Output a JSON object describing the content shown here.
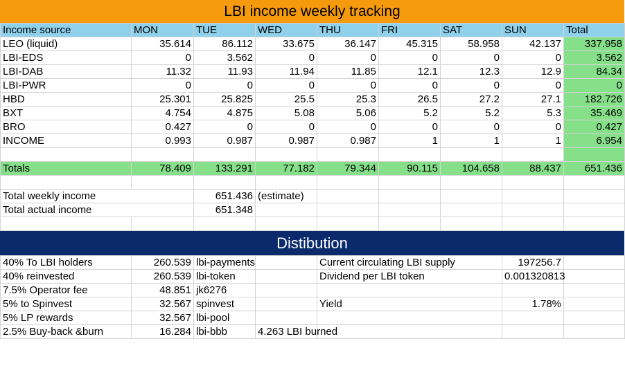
{
  "title": "LBI income weekly tracking",
  "headers": [
    "Income source",
    "MON",
    "TUE",
    "WED",
    "THU",
    "FRI",
    "SAT",
    "SUN",
    "Total"
  ],
  "rows": [
    [
      "LEO (liquid)",
      "35.614",
      "86.112",
      "33.675",
      "36.147",
      "45.315",
      "58.958",
      "42.137",
      "337.958"
    ],
    [
      "LBI-EDS",
      "0",
      "3.562",
      "0",
      "0",
      "0",
      "0",
      "0",
      "3.562"
    ],
    [
      "LBI-DAB",
      "11.32",
      "11.93",
      "11.94",
      "11.85",
      "12.1",
      "12.3",
      "12.9",
      "84.34"
    ],
    [
      "LBI-PWR",
      "0",
      "0",
      "0",
      "0",
      "0",
      "0",
      "0",
      "0"
    ],
    [
      "HBD",
      "25.301",
      "25.825",
      "25.5",
      "25.3",
      "26.5",
      "27.2",
      "27.1",
      "182.726"
    ],
    [
      "BXT",
      "4.754",
      "4.875",
      "5.08",
      "5.06",
      "5.2",
      "5.2",
      "5.3",
      "35.469"
    ],
    [
      "BRO",
      "0.427",
      "0",
      "0",
      "0",
      "0",
      "0",
      "0",
      "0.427"
    ],
    [
      "INCOME",
      "0.993",
      "0.987",
      "0.987",
      "0.987",
      "1",
      "1",
      "1",
      "6.954"
    ]
  ],
  "totals": [
    "Totals",
    "78.409",
    "133.291",
    "77.182",
    "79.344",
    "90.115",
    "104.658",
    "88.437",
    "651.436"
  ],
  "summary": {
    "weekly_label": "Total weekly income",
    "weekly_value": "651.436",
    "weekly_note": "(estimate)",
    "actual_label": "Total actual income",
    "actual_value": "651.348"
  },
  "distribution": {
    "title": "Distibution",
    "rows": [
      {
        "label": "40% To LBI holders",
        "value": "260.539",
        "account": "lbi-payments",
        "extra": "",
        "right_label": "Current circulating LBI supply",
        "right_value": "197256.7"
      },
      {
        "label": "40% reinvested",
        "value": "260.539",
        "account": "lbi-token",
        "extra": "",
        "right_label": "Dividend per LBI token",
        "right_value": "0.001320813"
      },
      {
        "label": "7.5% Operator fee",
        "value": "48.851",
        "account": "jk6276",
        "extra": "",
        "right_label": "",
        "right_value": ""
      },
      {
        "label": "5% to Spinvest",
        "value": "32.567",
        "account": "spinvest",
        "extra": "",
        "right_label": "Yield",
        "right_value": "1.78%"
      },
      {
        "label": "5% LP rewards",
        "value": "32.567",
        "account": "lbi-pool",
        "extra": "",
        "right_label": "",
        "right_value": ""
      },
      {
        "label": "2.5% Buy-back &burn",
        "value": "16.284",
        "account": "lbi-bbb",
        "extra": "4.263 LBI burned",
        "right_label": "",
        "right_value": ""
      }
    ]
  },
  "colors": {
    "title_bg": "#f59a0c",
    "header_bg": "#8fd0eb",
    "total_bg": "#86e08a",
    "dist_bg": "#0b2a6b"
  }
}
